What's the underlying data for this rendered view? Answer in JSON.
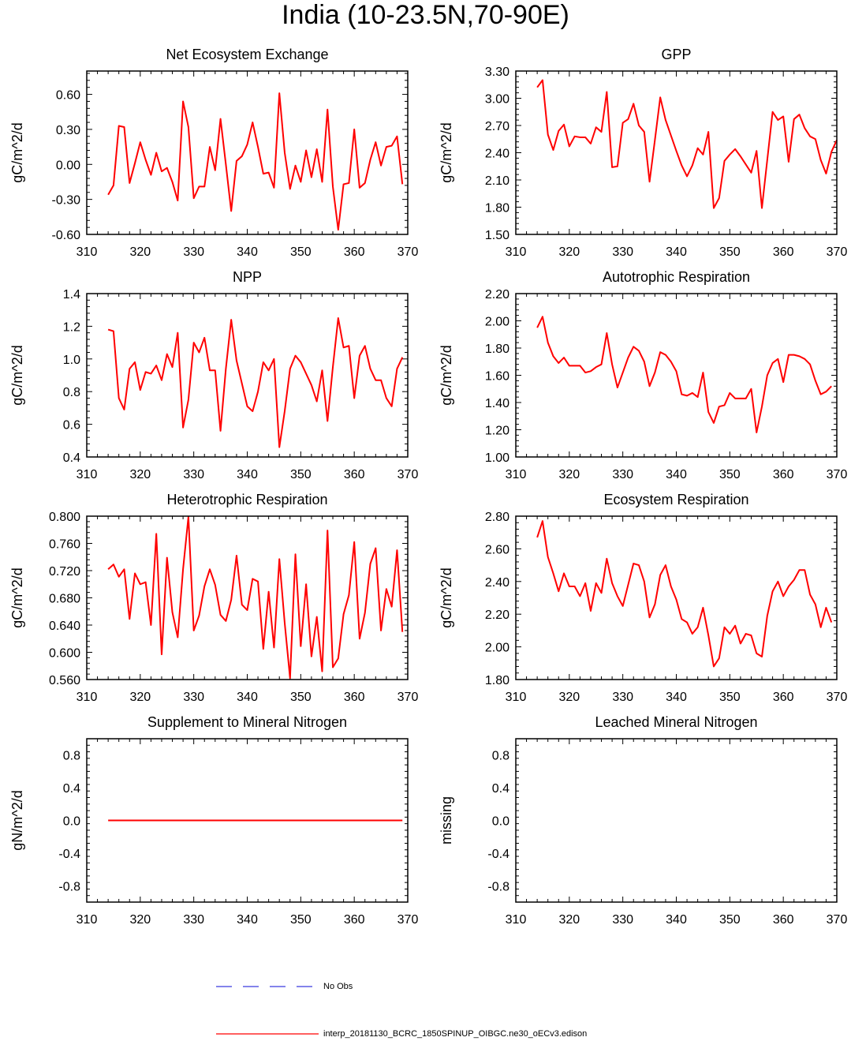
{
  "title": "India (10-23.5N,70-90E)",
  "colors": {
    "model": "#ff0000",
    "obs": "#3a3adf",
    "axis": "#000000"
  },
  "legend": {
    "obs_label": "No Obs",
    "model_label": "interp_20181130_BCRC_1850SPINUP_OIBGC.ne30_oECv3.edison"
  },
  "chart_data": [
    {
      "type": "line",
      "title": "Net Ecosystem Exchange",
      "ylabel": "gC/m^2/d",
      "xlim": [
        310,
        370
      ],
      "ylim": [
        -0.6,
        0.8
      ],
      "xticks": [
        "310",
        "320",
        "330",
        "340",
        "350",
        "360",
        "370"
      ],
      "yticks": [
        "-0.60",
        "-0.30",
        "0.00",
        "0.30",
        "0.60"
      ],
      "x_start": 314,
      "values": [
        -0.26,
        -0.18,
        0.33,
        0.32,
        -0.16,
        0.01,
        0.19,
        0.04,
        -0.09,
        0.1,
        -0.06,
        -0.03,
        -0.15,
        -0.31,
        0.54,
        0.32,
        -0.29,
        -0.19,
        -0.19,
        0.15,
        -0.05,
        0.39,
        0.0,
        -0.4,
        0.03,
        0.07,
        0.17,
        0.36,
        0.15,
        -0.08,
        -0.07,
        -0.2,
        0.61,
        0.1,
        -0.21,
        -0.01,
        -0.15,
        0.12,
        -0.11,
        0.13,
        -0.15,
        0.47,
        -0.19,
        -0.56,
        -0.17,
        -0.16,
        0.3,
        -0.2,
        -0.16,
        0.04,
        0.19,
        -0.01,
        0.15,
        0.16,
        0.24,
        -0.17
      ]
    },
    {
      "type": "line",
      "title": "GPP",
      "ylabel": "gC/m^2/d",
      "xlim": [
        310,
        370
      ],
      "ylim": [
        1.5,
        3.3
      ],
      "xticks": [
        "310",
        "320",
        "330",
        "340",
        "350",
        "360",
        "370"
      ],
      "yticks": [
        "1.50",
        "1.80",
        "2.10",
        "2.40",
        "2.70",
        "3.00",
        "3.30"
      ],
      "x_start": 314,
      "values": [
        3.12,
        3.2,
        2.6,
        2.43,
        2.64,
        2.71,
        2.47,
        2.58,
        2.57,
        2.57,
        2.5,
        2.68,
        2.63,
        3.07,
        2.24,
        2.25,
        2.73,
        2.77,
        2.94,
        2.7,
        2.63,
        2.08,
        2.54,
        3.01,
        2.76,
        2.59,
        2.42,
        2.26,
        2.14,
        2.26,
        2.45,
        2.38,
        2.63,
        1.79,
        1.9,
        2.31,
        2.38,
        2.44,
        2.36,
        2.27,
        2.18,
        2.42,
        1.79,
        2.32,
        2.85,
        2.76,
        2.8,
        2.3,
        2.77,
        2.82,
        2.67,
        2.58,
        2.55,
        2.32,
        2.17,
        2.41,
        2.54
      ]
    },
    {
      "type": "line",
      "title": "NPP",
      "ylabel": "gC/m^2/d",
      "xlim": [
        310,
        370
      ],
      "ylim": [
        0.4,
        1.4
      ],
      "xticks": [
        "310",
        "320",
        "330",
        "340",
        "350",
        "360",
        "370"
      ],
      "yticks": [
        "0.4",
        "0.6",
        "0.8",
        "1.0",
        "1.2",
        "1.4"
      ],
      "x_start": 314,
      "values": [
        1.18,
        1.17,
        0.76,
        0.69,
        0.94,
        0.98,
        0.81,
        0.92,
        0.91,
        0.96,
        0.87,
        1.03,
        0.95,
        1.16,
        0.58,
        0.75,
        1.1,
        1.04,
        1.13,
        0.93,
        0.93,
        0.56,
        0.94,
        1.24,
        0.99,
        0.85,
        0.71,
        0.68,
        0.8,
        0.98,
        0.93,
        1.0,
        0.46,
        0.68,
        0.94,
        1.02,
        0.98,
        0.91,
        0.84,
        0.74,
        0.93,
        0.62,
        0.95,
        1.25,
        1.07,
        1.08,
        0.76,
        1.02,
        1.08,
        0.94,
        0.87,
        0.87,
        0.76,
        0.71,
        0.94,
        1.01
      ]
    },
    {
      "type": "line",
      "title": "Autotrophic Respiration",
      "ylabel": "gC/m^2/d",
      "xlim": [
        310,
        370
      ],
      "ylim": [
        1.0,
        2.2
      ],
      "xticks": [
        "310",
        "320",
        "330",
        "340",
        "350",
        "360",
        "370"
      ],
      "yticks": [
        "1.00",
        "1.20",
        "1.40",
        "1.60",
        "1.80",
        "2.00",
        "2.20"
      ],
      "x_start": 314,
      "values": [
        1.95,
        2.03,
        1.84,
        1.74,
        1.69,
        1.73,
        1.67,
        1.67,
        1.67,
        1.62,
        1.63,
        1.66,
        1.68,
        1.91,
        1.68,
        1.51,
        1.62,
        1.73,
        1.81,
        1.78,
        1.7,
        1.52,
        1.62,
        1.77,
        1.75,
        1.7,
        1.63,
        1.46,
        1.45,
        1.47,
        1.44,
        1.62,
        1.33,
        1.25,
        1.37,
        1.38,
        1.47,
        1.43,
        1.43,
        1.43,
        1.5,
        1.18,
        1.37,
        1.6,
        1.69,
        1.72,
        1.55,
        1.75,
        1.75,
        1.74,
        1.72,
        1.68,
        1.56,
        1.46,
        1.48,
        1.52
      ]
    },
    {
      "type": "line",
      "title": "Heterotrophic Respiration",
      "ylabel": "gC/m^2/d",
      "xlim": [
        310,
        370
      ],
      "ylim": [
        0.56,
        0.8
      ],
      "xticks": [
        "310",
        "320",
        "330",
        "340",
        "350",
        "360",
        "370"
      ],
      "yticks": [
        "0.560",
        "0.600",
        "0.640",
        "0.680",
        "0.720",
        "0.760",
        "0.800"
      ],
      "x_start": 314,
      "values": [
        0.722,
        0.729,
        0.711,
        0.722,
        0.649,
        0.716,
        0.7,
        0.703,
        0.64,
        0.774,
        0.597,
        0.739,
        0.659,
        0.622,
        0.722,
        0.799,
        0.632,
        0.654,
        0.697,
        0.722,
        0.699,
        0.655,
        0.646,
        0.677,
        0.742,
        0.67,
        0.662,
        0.708,
        0.704,
        0.605,
        0.689,
        0.607,
        0.737,
        0.643,
        0.562,
        0.744,
        0.609,
        0.7,
        0.594,
        0.652,
        0.572,
        0.779,
        0.578,
        0.591,
        0.656,
        0.684,
        0.762,
        0.62,
        0.658,
        0.73,
        0.753,
        0.632,
        0.693,
        0.667,
        0.75,
        0.63
      ]
    },
    {
      "type": "line",
      "title": "Ecosystem Respiration",
      "ylabel": "gC/m^2/d",
      "xlim": [
        310,
        370
      ],
      "ylim": [
        1.8,
        2.8
      ],
      "xticks": [
        "310",
        "320",
        "330",
        "340",
        "350",
        "360",
        "370"
      ],
      "yticks": [
        "1.80",
        "2.00",
        "2.20",
        "2.40",
        "2.60",
        "2.80"
      ],
      "x_start": 314,
      "values": [
        2.67,
        2.77,
        2.55,
        2.45,
        2.34,
        2.45,
        2.37,
        2.37,
        2.31,
        2.39,
        2.22,
        2.39,
        2.33,
        2.54,
        2.39,
        2.31,
        2.25,
        2.38,
        2.51,
        2.5,
        2.4,
        2.18,
        2.26,
        2.44,
        2.5,
        2.37,
        2.29,
        2.17,
        2.15,
        2.08,
        2.12,
        2.24,
        2.07,
        1.88,
        1.93,
        2.12,
        2.08,
        2.13,
        2.02,
        2.08,
        2.07,
        1.96,
        1.94,
        2.19,
        2.34,
        2.4,
        2.31,
        2.37,
        2.41,
        2.47,
        2.47,
        2.32,
        2.26,
        2.12,
        2.24,
        2.15
      ]
    },
    {
      "type": "line",
      "title": "Supplement to Mineral Nitrogen",
      "ylabel": "gN/m^2/d",
      "xlim": [
        310,
        370
      ],
      "ylim": [
        -1.0,
        1.0
      ],
      "xticks": [
        "310",
        "320",
        "330",
        "340",
        "350",
        "360",
        "370"
      ],
      "yticks": [
        "-0.8",
        "-0.4",
        "0.0",
        "0.4",
        "0.8"
      ],
      "x_start": 314,
      "values": [
        0,
        0,
        0,
        0,
        0,
        0,
        0,
        0,
        0,
        0,
        0,
        0,
        0,
        0,
        0,
        0,
        0,
        0,
        0,
        0,
        0,
        0,
        0,
        0,
        0,
        0,
        0,
        0,
        0,
        0,
        0,
        0,
        0,
        0,
        0,
        0,
        0,
        0,
        0,
        0,
        0,
        0,
        0,
        0,
        0,
        0,
        0,
        0,
        0,
        0,
        0,
        0,
        0,
        0,
        0,
        0
      ]
    },
    {
      "type": "line",
      "title": "Leached Mineral Nitrogen",
      "ylabel": "missing",
      "xlim": [
        310,
        370
      ],
      "ylim": [
        -1.0,
        1.0
      ],
      "xticks": [
        "310",
        "320",
        "330",
        "340",
        "350",
        "360",
        "370"
      ],
      "yticks": [
        "-0.8",
        "-0.4",
        "0.0",
        "0.4",
        "0.8"
      ],
      "x_start": 314,
      "values": []
    }
  ]
}
